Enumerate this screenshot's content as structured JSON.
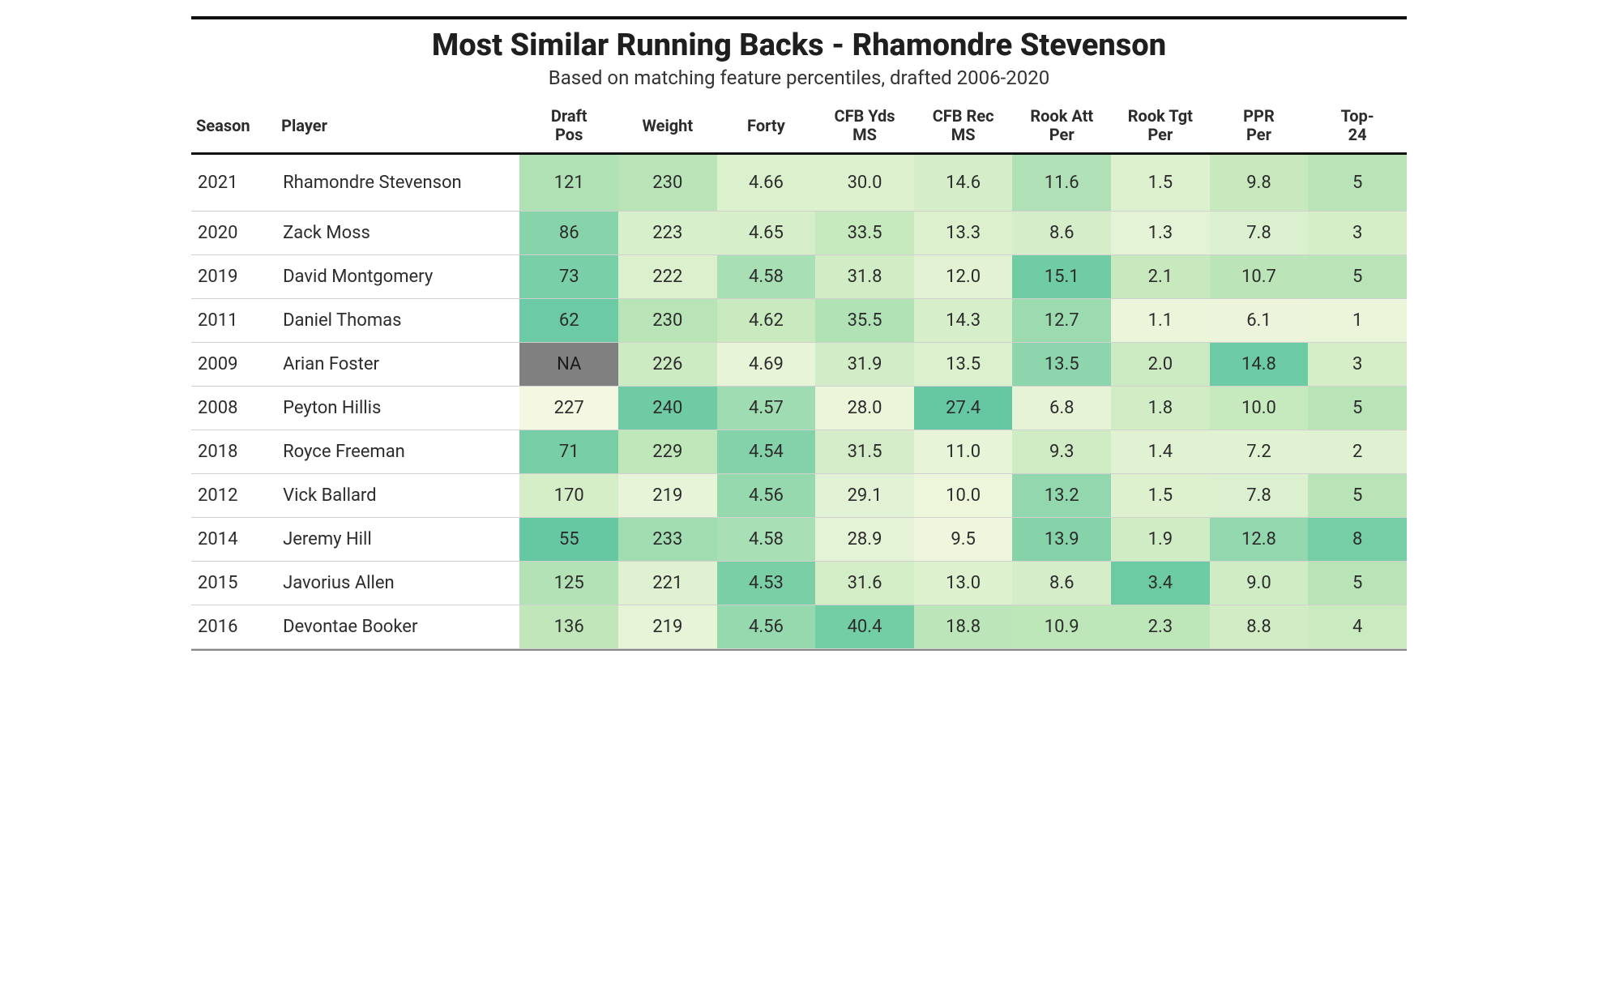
{
  "table": {
    "title": "Most Similar Running Backs - Rhamondre Stevenson",
    "subtitle": "Based on matching feature percentiles, drafted 2006-2020",
    "title_fontsize": 38,
    "subtitle_fontsize": 24,
    "header_fontsize": 20,
    "cell_fontsize": 22,
    "font_family": "sans-serif",
    "background_color": "#ffffff",
    "rule_color": "#111111",
    "row_border_color": "#d0d0d0",
    "na_color": "#808080",
    "heat_scale": {
      "low_color": "#f6f9e3",
      "mid_color": "#c4e8bb",
      "high_color": "#5fc6a0"
    },
    "columns": [
      {
        "key": "season",
        "label": "Season",
        "type": "text",
        "align": "left"
      },
      {
        "key": "player",
        "label": "Player",
        "type": "text",
        "align": "left"
      },
      {
        "key": "draft",
        "label": "Draft\nPos",
        "type": "heat",
        "min": 50,
        "max": 230,
        "invert": true
      },
      {
        "key": "weight",
        "label": "Weight",
        "type": "heat",
        "min": 215,
        "max": 242
      },
      {
        "key": "forty",
        "label": "Forty",
        "type": "heat",
        "min": 4.5,
        "max": 4.72,
        "invert": true
      },
      {
        "key": "cfb_yds",
        "label": "CFB Yds\nMS",
        "type": "heat",
        "min": 26,
        "max": 42
      },
      {
        "key": "cfb_rec",
        "label": "CFB Rec\nMS",
        "type": "heat",
        "min": 8,
        "max": 28
      },
      {
        "key": "rook_att",
        "label": "Rook Att\nPer",
        "type": "heat",
        "min": 5,
        "max": 16
      },
      {
        "key": "rook_tgt",
        "label": "Rook Tgt\nPer",
        "type": "heat",
        "min": 0.8,
        "max": 3.6
      },
      {
        "key": "ppr",
        "label": "PPR\nPer",
        "type": "heat",
        "min": 5,
        "max": 15.5
      },
      {
        "key": "top24",
        "label": "Top-\n24",
        "type": "heat",
        "min": 0,
        "max": 9
      }
    ],
    "rows": [
      {
        "season": "2021",
        "player": "Rhamondre Stevenson",
        "draft": "121",
        "weight": "230",
        "forty": "4.66",
        "cfb_yds": "30.0",
        "cfb_rec": "14.6",
        "rook_att": "11.6",
        "rook_tgt": "1.5",
        "ppr": "9.8",
        "top24": "5"
      },
      {
        "season": "2020",
        "player": "Zack Moss",
        "draft": "86",
        "weight": "223",
        "forty": "4.65",
        "cfb_yds": "33.5",
        "cfb_rec": "13.3",
        "rook_att": "8.6",
        "rook_tgt": "1.3",
        "ppr": "7.8",
        "top24": "3"
      },
      {
        "season": "2019",
        "player": "David Montgomery",
        "draft": "73",
        "weight": "222",
        "forty": "4.58",
        "cfb_yds": "31.8",
        "cfb_rec": "12.0",
        "rook_att": "15.1",
        "rook_tgt": "2.1",
        "ppr": "10.7",
        "top24": "5"
      },
      {
        "season": "2011",
        "player": "Daniel Thomas",
        "draft": "62",
        "weight": "230",
        "forty": "4.62",
        "cfb_yds": "35.5",
        "cfb_rec": "14.3",
        "rook_att": "12.7",
        "rook_tgt": "1.1",
        "ppr": "6.1",
        "top24": "1"
      },
      {
        "season": "2009",
        "player": "Arian Foster",
        "draft": "NA",
        "weight": "226",
        "forty": "4.69",
        "cfb_yds": "31.9",
        "cfb_rec": "13.5",
        "rook_att": "13.5",
        "rook_tgt": "2.0",
        "ppr": "14.8",
        "top24": "3"
      },
      {
        "season": "2008",
        "player": "Peyton Hillis",
        "draft": "227",
        "weight": "240",
        "forty": "4.57",
        "cfb_yds": "28.0",
        "cfb_rec": "27.4",
        "rook_att": "6.8",
        "rook_tgt": "1.8",
        "ppr": "10.0",
        "top24": "5"
      },
      {
        "season": "2018",
        "player": "Royce Freeman",
        "draft": "71",
        "weight": "229",
        "forty": "4.54",
        "cfb_yds": "31.5",
        "cfb_rec": "11.0",
        "rook_att": "9.3",
        "rook_tgt": "1.4",
        "ppr": "7.2",
        "top24": "2"
      },
      {
        "season": "2012",
        "player": "Vick Ballard",
        "draft": "170",
        "weight": "219",
        "forty": "4.56",
        "cfb_yds": "29.1",
        "cfb_rec": "10.0",
        "rook_att": "13.2",
        "rook_tgt": "1.5",
        "ppr": "7.8",
        "top24": "5"
      },
      {
        "season": "2014",
        "player": "Jeremy Hill",
        "draft": "55",
        "weight": "233",
        "forty": "4.58",
        "cfb_yds": "28.9",
        "cfb_rec": "9.5",
        "rook_att": "13.9",
        "rook_tgt": "1.9",
        "ppr": "12.8",
        "top24": "8"
      },
      {
        "season": "2015",
        "player": "Javorius Allen",
        "draft": "125",
        "weight": "221",
        "forty": "4.53",
        "cfb_yds": "31.6",
        "cfb_rec": "13.0",
        "rook_att": "8.6",
        "rook_tgt": "3.4",
        "ppr": "9.0",
        "top24": "5"
      },
      {
        "season": "2016",
        "player": "Devontae Booker",
        "draft": "136",
        "weight": "219",
        "forty": "4.56",
        "cfb_yds": "40.4",
        "cfb_rec": "18.8",
        "rook_att": "10.9",
        "rook_tgt": "2.3",
        "ppr": "8.8",
        "top24": "4"
      }
    ]
  }
}
